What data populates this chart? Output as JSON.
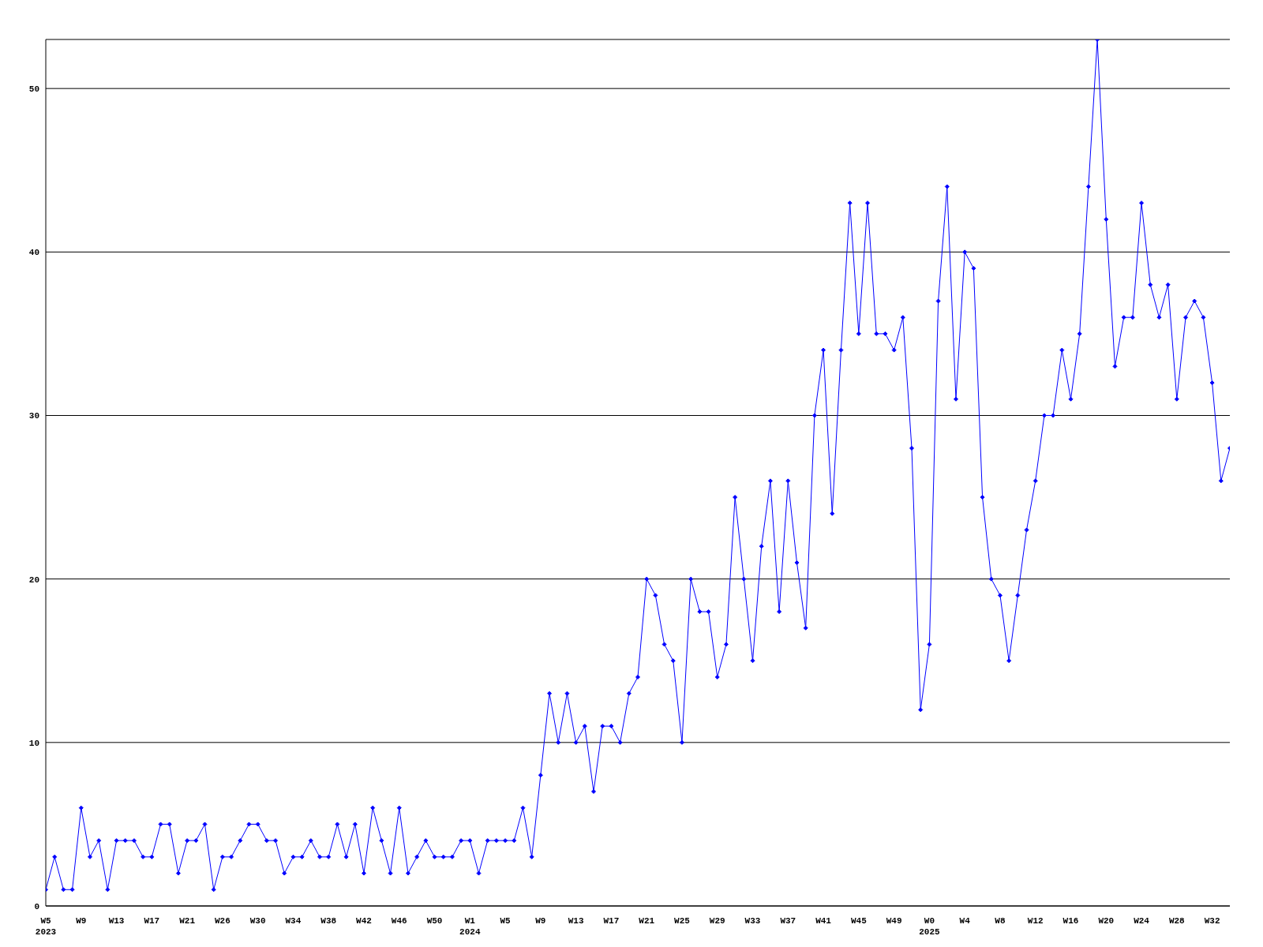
{
  "chart_data": {
    "type": "line",
    "categories": [
      "W5\n2023",
      null,
      null,
      null,
      "W9",
      null,
      null,
      null,
      "W13",
      null,
      null,
      null,
      "W17",
      null,
      null,
      null,
      "W21",
      null,
      null,
      null,
      "W26",
      null,
      null,
      null,
      "W30",
      null,
      null,
      null,
      "W34",
      null,
      null,
      null,
      "W38",
      null,
      null,
      null,
      "W42",
      null,
      null,
      null,
      "W46",
      null,
      null,
      null,
      "W50",
      null,
      null,
      null,
      "W1\n2024",
      null,
      null,
      null,
      "W5",
      null,
      null,
      null,
      "W9",
      null,
      null,
      null,
      "W13",
      null,
      null,
      null,
      "W17",
      null,
      null,
      null,
      "W21",
      null,
      null,
      null,
      "W25",
      null,
      null,
      null,
      "W29",
      null,
      null,
      null,
      "W33",
      null,
      null,
      null,
      "W37",
      null,
      null,
      null,
      "W41",
      null,
      null,
      null,
      "W45",
      null,
      null,
      null,
      "W49",
      null,
      null,
      null,
      "W0\n2025",
      null,
      null,
      null,
      "W4",
      null,
      null,
      null,
      "W8",
      null,
      null,
      null,
      "W12",
      null,
      null,
      null,
      "W16",
      null,
      null,
      null,
      "W20",
      null,
      null,
      null,
      "W24",
      null,
      null,
      null,
      "W28",
      null,
      null,
      null,
      "W32",
      null,
      null
    ],
    "series": [
      {
        "color": "#0000ff",
        "values": [
          1,
          3,
          1,
          1,
          6,
          3,
          4,
          1,
          4,
          4,
          4,
          3,
          3,
          5,
          5,
          2,
          4,
          4,
          5,
          1,
          3,
          3,
          4,
          5,
          5,
          4,
          4,
          2,
          3,
          3,
          4,
          3,
          3,
          5,
          3,
          5,
          2,
          6,
          4,
          2,
          6,
          2,
          3,
          4,
          3,
          3,
          3,
          4,
          4,
          2,
          4,
          4,
          4,
          4,
          6,
          3,
          8,
          13,
          10,
          13,
          10,
          11,
          7,
          11,
          11,
          10,
          13,
          14,
          20,
          19,
          16,
          15,
          10,
          20,
          18,
          18,
          14,
          16,
          25,
          20,
          15,
          22,
          26,
          18,
          26,
          21,
          17,
          30,
          34,
          24,
          34,
          43,
          35,
          43,
          35,
          35,
          34,
          36,
          28,
          12,
          16,
          37,
          44,
          31,
          40,
          39,
          25,
          20,
          19,
          15,
          19,
          23,
          26,
          30,
          30,
          34,
          31,
          35,
          44,
          53,
          42,
          33,
          36,
          36,
          43,
          38,
          36,
          38,
          31,
          36,
          37,
          36,
          32,
          26,
          28
        ]
      }
    ],
    "ylim": [
      0,
      53
    ],
    "yticks": [
      0,
      10,
      20,
      30,
      40,
      50
    ],
    "grid": "y",
    "marker": "diamond",
    "line_style": "solid"
  }
}
